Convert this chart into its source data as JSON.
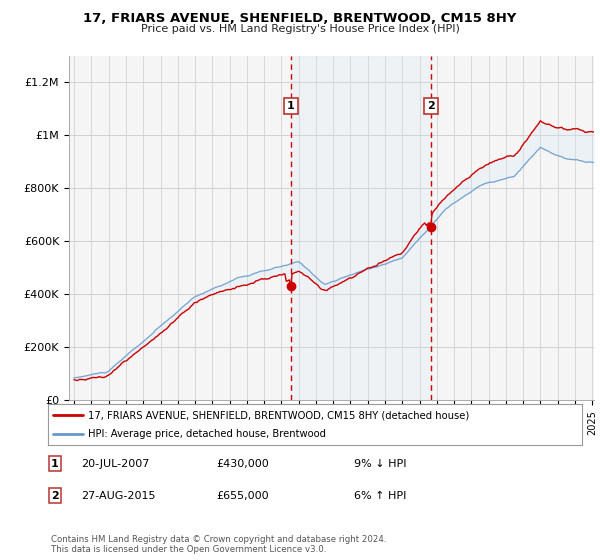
{
  "title": "17, FRIARS AVENUE, SHENFIELD, BRENTWOOD, CM15 8HY",
  "subtitle": "Price paid vs. HM Land Registry's House Price Index (HPI)",
  "ylim": [
    0,
    1300000
  ],
  "yticks": [
    0,
    200000,
    400000,
    600000,
    800000,
    1000000,
    1200000
  ],
  "ytick_labels": [
    "£0",
    "£200K",
    "£400K",
    "£600K",
    "£800K",
    "£1M",
    "£1.2M"
  ],
  "x_start_year": 1995,
  "x_end_year": 2025,
  "transaction1_year": 2007.55,
  "transaction1_value": 430000,
  "transaction2_year": 2015.65,
  "transaction2_value": 655000,
  "red_line_color": "#cc0000",
  "blue_line_color": "#6699cc",
  "shade_color": "#d0e8f8",
  "dashed_line_color": "#cc0000",
  "background_color": "#ffffff",
  "plot_bg_color": "#f5f5f5",
  "grid_color": "#cccccc",
  "legend_label_red": "17, FRIARS AVENUE, SHENFIELD, BRENTWOOD, CM15 8HY (detached house)",
  "legend_label_blue": "HPI: Average price, detached house, Brentwood",
  "annotation1_date": "20-JUL-2007",
  "annotation1_price": "£430,000",
  "annotation1_hpi": "9% ↓ HPI",
  "annotation2_date": "27-AUG-2015",
  "annotation2_price": "£655,000",
  "annotation2_hpi": "6% ↑ HPI",
  "footer": "Contains HM Land Registry data © Crown copyright and database right 2024.\nThis data is licensed under the Open Government Licence v3.0."
}
